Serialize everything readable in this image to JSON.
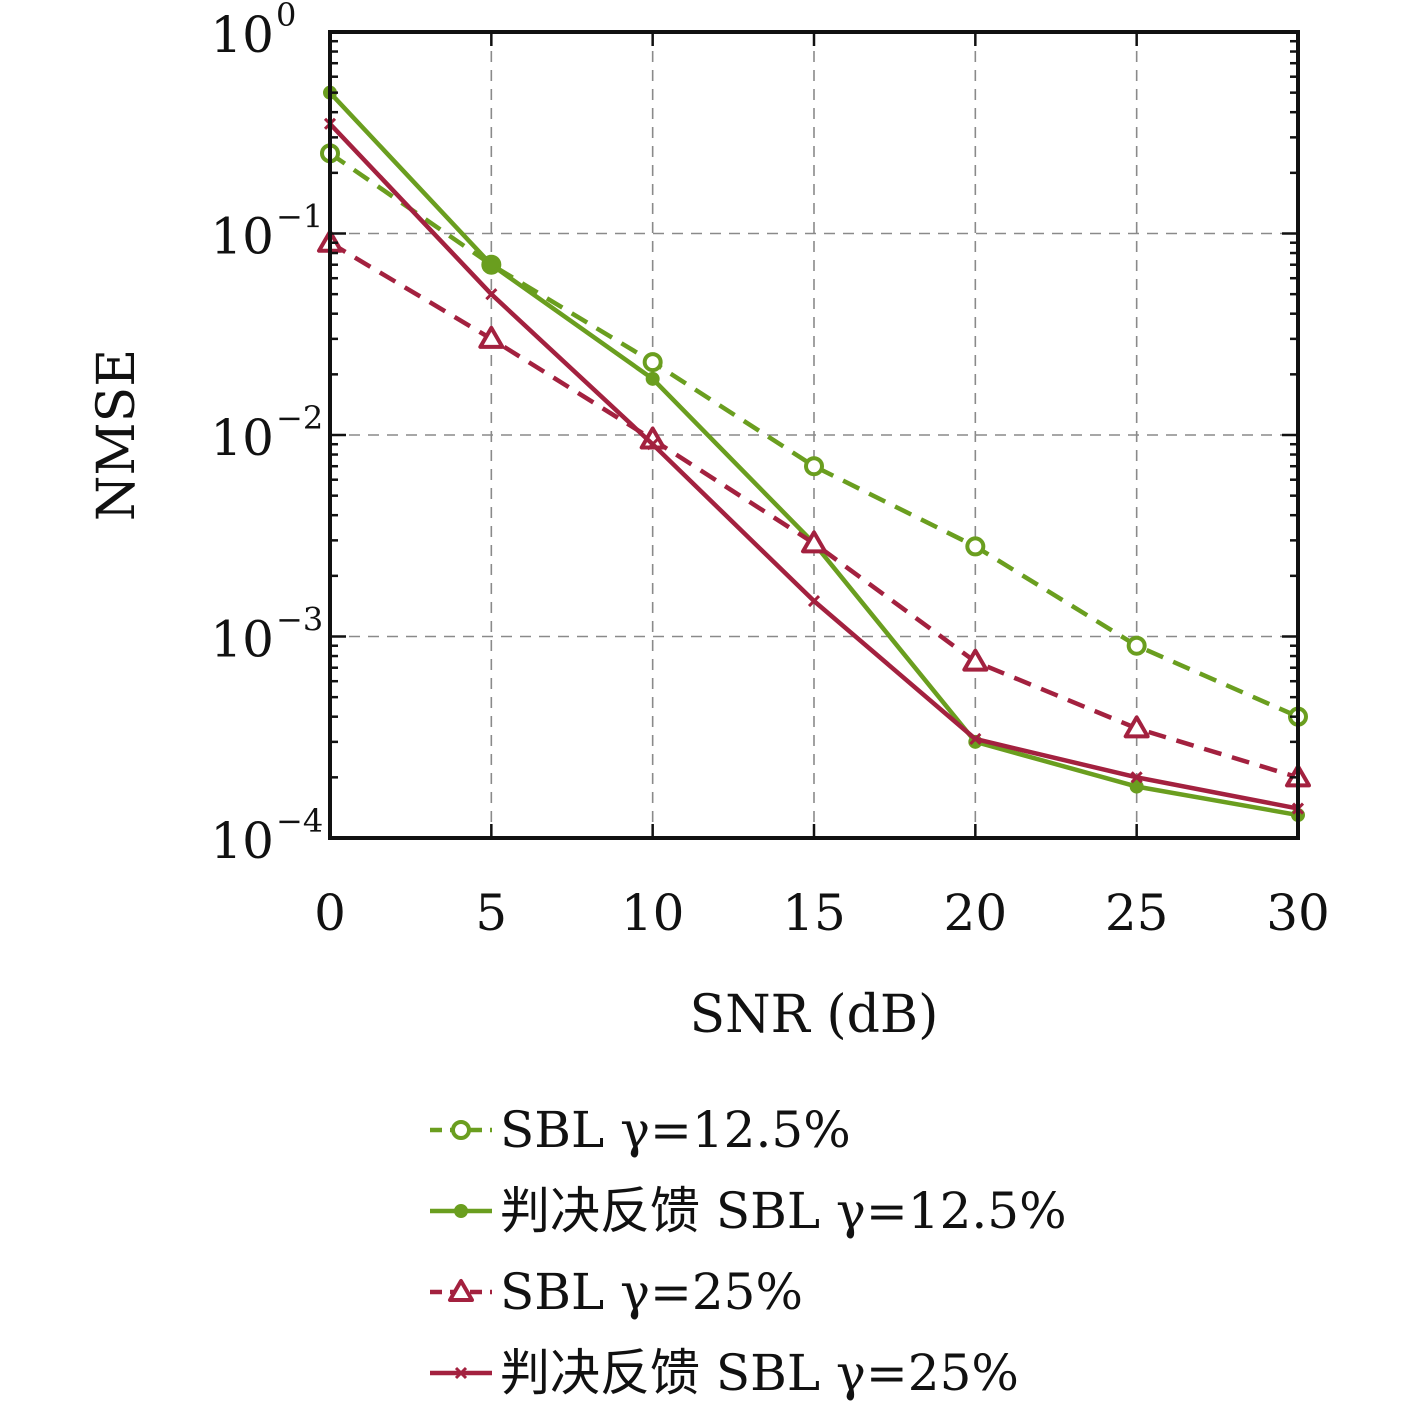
{
  "chart_data": {
    "type": "line",
    "title": "",
    "xlabel": "SNR (dB)",
    "ylabel": "NMSE",
    "x": [
      0,
      5,
      10,
      15,
      20,
      25,
      30
    ],
    "xlim": [
      0,
      30
    ],
    "ylim": [
      0.0001,
      1
    ],
    "yscale": "log",
    "xticks": [
      "0",
      "5",
      "10",
      "15",
      "20",
      "25",
      "30"
    ],
    "yticks": [
      {
        "base": "10",
        "exp": "0"
      },
      {
        "base": "10",
        "exp": "−1"
      },
      {
        "base": "10",
        "exp": "−2"
      },
      {
        "base": "10",
        "exp": "−3"
      },
      {
        "base": "10",
        "exp": "−4"
      }
    ],
    "grid": true,
    "legend_position": "below",
    "series": [
      {
        "name": "SBL γ=12.5%",
        "color": "#6a9e1f",
        "dash": "dashed",
        "marker": "open-circle",
        "values": [
          0.25,
          0.07,
          0.023,
          0.007,
          0.0028,
          0.0009,
          0.0004
        ]
      },
      {
        "name": "判决反馈 SBL γ=12.5%",
        "color": "#6a9e1f",
        "dash": "solid",
        "marker": "filled-dot",
        "values": [
          0.5,
          0.07,
          0.019,
          0.0029,
          0.0003,
          0.00018,
          0.00013
        ]
      },
      {
        "name": "SBL γ=25%",
        "color": "#a3213f",
        "dash": "dashed",
        "marker": "open-triangle",
        "values": [
          0.09,
          0.03,
          0.0095,
          0.0029,
          0.00075,
          0.00035,
          0.0002
        ]
      },
      {
        "name": "判决反馈 SBL γ=25%",
        "color": "#a3213f",
        "dash": "solid",
        "marker": "cross",
        "values": [
          0.35,
          0.05,
          0.009,
          0.0015,
          0.00031,
          0.0002,
          0.00014
        ]
      }
    ]
  }
}
